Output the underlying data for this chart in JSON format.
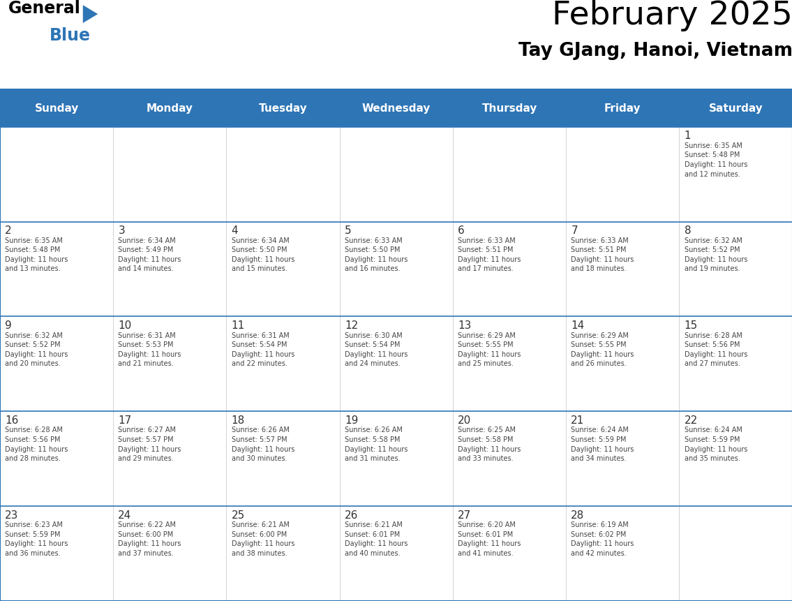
{
  "title": "February 2025",
  "subtitle": "Tay GJang, Hanoi, Vietnam",
  "header_bg_color": "#2E75B6",
  "header_text_color": "#FFFFFF",
  "border_color": "#2E75B6",
  "day_headers": [
    "Sunday",
    "Monday",
    "Tuesday",
    "Wednesday",
    "Thursday",
    "Friday",
    "Saturday"
  ],
  "title_color": "#000000",
  "subtitle_color": "#000000",
  "day_num_color": "#333333",
  "info_color": "#444444",
  "logo_general_color": "#000000",
  "logo_blue_color": "#2E75B6",
  "logo_triangle_color": "#2E75B6",
  "weeks": [
    [
      {
        "day": "",
        "info": ""
      },
      {
        "day": "",
        "info": ""
      },
      {
        "day": "",
        "info": ""
      },
      {
        "day": "",
        "info": ""
      },
      {
        "day": "",
        "info": ""
      },
      {
        "day": "",
        "info": ""
      },
      {
        "day": "1",
        "info": "Sunrise: 6:35 AM\nSunset: 5:48 PM\nDaylight: 11 hours\nand 12 minutes."
      }
    ],
    [
      {
        "day": "2",
        "info": "Sunrise: 6:35 AM\nSunset: 5:48 PM\nDaylight: 11 hours\nand 13 minutes."
      },
      {
        "day": "3",
        "info": "Sunrise: 6:34 AM\nSunset: 5:49 PM\nDaylight: 11 hours\nand 14 minutes."
      },
      {
        "day": "4",
        "info": "Sunrise: 6:34 AM\nSunset: 5:50 PM\nDaylight: 11 hours\nand 15 minutes."
      },
      {
        "day": "5",
        "info": "Sunrise: 6:33 AM\nSunset: 5:50 PM\nDaylight: 11 hours\nand 16 minutes."
      },
      {
        "day": "6",
        "info": "Sunrise: 6:33 AM\nSunset: 5:51 PM\nDaylight: 11 hours\nand 17 minutes."
      },
      {
        "day": "7",
        "info": "Sunrise: 6:33 AM\nSunset: 5:51 PM\nDaylight: 11 hours\nand 18 minutes."
      },
      {
        "day": "8",
        "info": "Sunrise: 6:32 AM\nSunset: 5:52 PM\nDaylight: 11 hours\nand 19 minutes."
      }
    ],
    [
      {
        "day": "9",
        "info": "Sunrise: 6:32 AM\nSunset: 5:52 PM\nDaylight: 11 hours\nand 20 minutes."
      },
      {
        "day": "10",
        "info": "Sunrise: 6:31 AM\nSunset: 5:53 PM\nDaylight: 11 hours\nand 21 minutes."
      },
      {
        "day": "11",
        "info": "Sunrise: 6:31 AM\nSunset: 5:54 PM\nDaylight: 11 hours\nand 22 minutes."
      },
      {
        "day": "12",
        "info": "Sunrise: 6:30 AM\nSunset: 5:54 PM\nDaylight: 11 hours\nand 24 minutes."
      },
      {
        "day": "13",
        "info": "Sunrise: 6:29 AM\nSunset: 5:55 PM\nDaylight: 11 hours\nand 25 minutes."
      },
      {
        "day": "14",
        "info": "Sunrise: 6:29 AM\nSunset: 5:55 PM\nDaylight: 11 hours\nand 26 minutes."
      },
      {
        "day": "15",
        "info": "Sunrise: 6:28 AM\nSunset: 5:56 PM\nDaylight: 11 hours\nand 27 minutes."
      }
    ],
    [
      {
        "day": "16",
        "info": "Sunrise: 6:28 AM\nSunset: 5:56 PM\nDaylight: 11 hours\nand 28 minutes."
      },
      {
        "day": "17",
        "info": "Sunrise: 6:27 AM\nSunset: 5:57 PM\nDaylight: 11 hours\nand 29 minutes."
      },
      {
        "day": "18",
        "info": "Sunrise: 6:26 AM\nSunset: 5:57 PM\nDaylight: 11 hours\nand 30 minutes."
      },
      {
        "day": "19",
        "info": "Sunrise: 6:26 AM\nSunset: 5:58 PM\nDaylight: 11 hours\nand 31 minutes."
      },
      {
        "day": "20",
        "info": "Sunrise: 6:25 AM\nSunset: 5:58 PM\nDaylight: 11 hours\nand 33 minutes."
      },
      {
        "day": "21",
        "info": "Sunrise: 6:24 AM\nSunset: 5:59 PM\nDaylight: 11 hours\nand 34 minutes."
      },
      {
        "day": "22",
        "info": "Sunrise: 6:24 AM\nSunset: 5:59 PM\nDaylight: 11 hours\nand 35 minutes."
      }
    ],
    [
      {
        "day": "23",
        "info": "Sunrise: 6:23 AM\nSunset: 5:59 PM\nDaylight: 11 hours\nand 36 minutes."
      },
      {
        "day": "24",
        "info": "Sunrise: 6:22 AM\nSunset: 6:00 PM\nDaylight: 11 hours\nand 37 minutes."
      },
      {
        "day": "25",
        "info": "Sunrise: 6:21 AM\nSunset: 6:00 PM\nDaylight: 11 hours\nand 38 minutes."
      },
      {
        "day": "26",
        "info": "Sunrise: 6:21 AM\nSunset: 6:01 PM\nDaylight: 11 hours\nand 40 minutes."
      },
      {
        "day": "27",
        "info": "Sunrise: 6:20 AM\nSunset: 6:01 PM\nDaylight: 11 hours\nand 41 minutes."
      },
      {
        "day": "28",
        "info": "Sunrise: 6:19 AM\nSunset: 6:02 PM\nDaylight: 11 hours\nand 42 minutes."
      },
      {
        "day": "",
        "info": ""
      }
    ]
  ]
}
